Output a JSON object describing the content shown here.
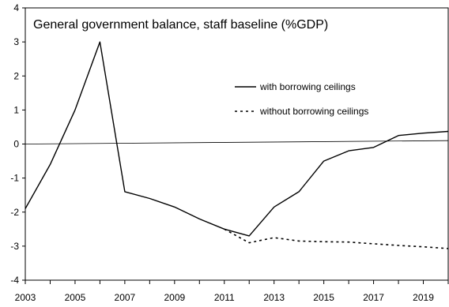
{
  "chart_data": {
    "type": "line",
    "title": "General government balance, staff baseline (%GDP)",
    "xlabel": "",
    "ylabel": "",
    "xlim": [
      2003,
      2020
    ],
    "ylim": [
      -4,
      4
    ],
    "x_ticks": [
      2003,
      2005,
      2007,
      2009,
      2011,
      2013,
      2015,
      2017,
      2019
    ],
    "y_ticks": [
      -4,
      -3,
      -2,
      -1,
      0,
      1,
      2,
      3,
      4
    ],
    "grid": false,
    "legend_position": "right",
    "reference_line": {
      "from": [
        2003,
        0
      ],
      "to": [
        2020,
        0.1
      ]
    },
    "series": [
      {
        "name": "with borrowing ceilings",
        "style": "solid",
        "x": [
          2003,
          2004,
          2005,
          2006,
          2007,
          2008,
          2009,
          2010,
          2011,
          2012,
          2013,
          2014,
          2015,
          2016,
          2017,
          2018,
          2019,
          2020
        ],
        "y": [
          -1.9,
          -0.6,
          1.0,
          3.0,
          -1.4,
          -1.6,
          -1.85,
          -2.2,
          -2.5,
          -2.7,
          -1.85,
          -1.4,
          -0.5,
          -0.2,
          -0.1,
          0.25,
          0.32,
          0.37
        ]
      },
      {
        "name": "without borrowing ceilings",
        "style": "dashed",
        "x": [
          2011,
          2012,
          2013,
          2014,
          2015,
          2016,
          2017,
          2018,
          2019,
          2020
        ],
        "y": [
          -2.5,
          -2.9,
          -2.75,
          -2.85,
          -2.87,
          -2.88,
          -2.93,
          -2.98,
          -3.02,
          -3.07
        ]
      }
    ]
  }
}
